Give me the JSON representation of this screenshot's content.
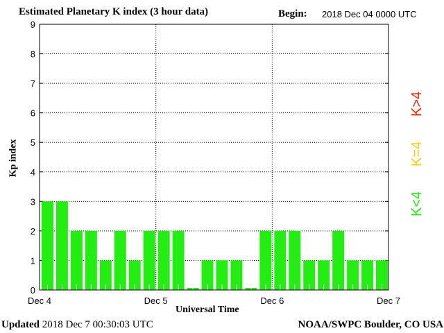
{
  "header": {
    "title": "Estimated Planetary K index (3 hour data)",
    "begin_label": "Begin:",
    "begin_value": "2018 Dec 04 0000 UTC"
  },
  "footer": {
    "updated_label": "Updated",
    "updated_value": "2018 Dec  7 00:30:03 UTC",
    "credit": "NOAA/SWPC Boulder, CO USA"
  },
  "legend": {
    "low": "K<4",
    "eq": "K=4",
    "high": "K>4",
    "colors": {
      "low": "#22ee11",
      "eq": "#ffcc00",
      "high": "#ff2200"
    }
  },
  "chart_data": {
    "type": "bar",
    "title": "Estimated Planetary K index (3 hour data)",
    "xlabel": "Universal Time",
    "ylabel": "Kp index",
    "ylim": [
      0,
      9
    ],
    "yticks": [
      "0",
      "1",
      "2",
      "3",
      "4",
      "5",
      "6",
      "7",
      "8",
      "9"
    ],
    "xticks": [
      "Dec 4",
      "Dec 5",
      "Dec 6",
      "Dec 7"
    ],
    "grid": true,
    "bar_color": "#22ee11",
    "interval_hours": 3,
    "values": [
      3,
      3,
      2,
      2,
      1,
      2,
      1,
      2,
      2,
      2,
      0,
      1,
      1,
      1,
      0,
      2,
      2,
      2,
      1,
      1,
      2,
      1,
      1,
      1
    ]
  }
}
